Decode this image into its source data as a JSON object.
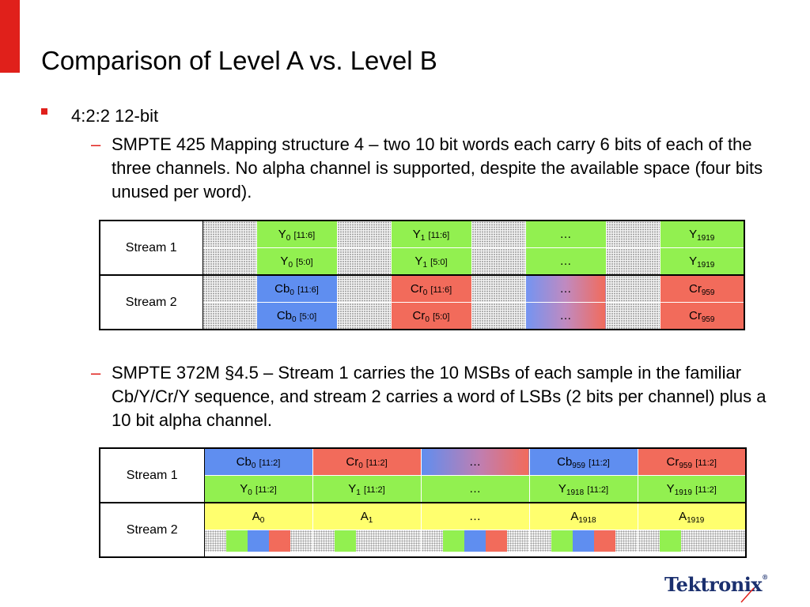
{
  "title": "Comparison of Level A vs. Level B",
  "bullet": "4:2:2 12-bit",
  "sub1": "SMPTE 425 Mapping structure 4 – two 10 bit words each carry 6 bits of each of the three channels.  No alpha channel is supported, despite the available space (four bits unused per word).",
  "sub2": "SMPTE 372M §4.5 – Stream 1 carries the 10 MSBs of each sample in the familiar Cb/Y/Cr/Y sequence, and stream 2 carries a word of LSBs (2 bits per channel) plus a 10 bit alpha channel.",
  "dash": "–",
  "table1": {
    "stream1": "Stream 1",
    "stream2": "Stream 2",
    "r1": [
      {
        "base": "Y",
        "sub": "0",
        "bits": "[11:6]"
      },
      {
        "base": "Y",
        "sub": "1",
        "bits": "[11:6]"
      },
      {
        "base": "…",
        "sub": "",
        "bits": ""
      },
      {
        "base": "Y",
        "sub": "1919",
        "bits": ""
      }
    ],
    "r2": [
      {
        "base": "Y",
        "sub": "0",
        "bits": "[5:0]"
      },
      {
        "base": "Y",
        "sub": "1",
        "bits": "[5:0]"
      },
      {
        "base": "…",
        "sub": "",
        "bits": ""
      },
      {
        "base": "Y",
        "sub": "1919",
        "bits": ""
      }
    ],
    "r3": [
      {
        "base": "Cb",
        "sub": "0",
        "bits": "[11:6]"
      },
      {
        "base": "Cr",
        "sub": "0",
        "bits": "[11:6]"
      },
      {
        "base": "…",
        "sub": "",
        "bits": ""
      },
      {
        "base": "Cr",
        "sub": "959",
        "bits": ""
      }
    ],
    "r4": [
      {
        "base": "Cb",
        "sub": "0",
        "bits": "[5:0]"
      },
      {
        "base": "Cr",
        "sub": "0",
        "bits": "[5:0]"
      },
      {
        "base": "…",
        "sub": "",
        "bits": ""
      },
      {
        "base": "Cr",
        "sub": "959",
        "bits": ""
      }
    ]
  },
  "table2": {
    "stream1": "Stream 1",
    "stream2": "Stream 2",
    "r1": [
      {
        "base": "Cb",
        "sub": "0",
        "bits": "[11:2]"
      },
      {
        "base": "Cr",
        "sub": "0",
        "bits": "[11:2]"
      },
      {
        "base": "…",
        "sub": "",
        "bits": ""
      },
      {
        "base": "Cb",
        "sub": "959",
        "bits": "[11:2]"
      },
      {
        "base": "Cr",
        "sub": "959",
        "bits": "[11:2]"
      }
    ],
    "r2": [
      {
        "base": "Y",
        "sub": "0",
        "bits": "[11:2]"
      },
      {
        "base": "Y",
        "sub": "1",
        "bits": "[11:2]"
      },
      {
        "base": "…",
        "sub": "",
        "bits": ""
      },
      {
        "base": "Y",
        "sub": "1918",
        "bits": "[11:2]"
      },
      {
        "base": "Y",
        "sub": "1919",
        "bits": "[11:2]"
      }
    ],
    "r3": [
      {
        "base": "A",
        "sub": "0",
        "bits": ""
      },
      {
        "base": "A",
        "sub": "1",
        "bits": ""
      },
      {
        "base": "…",
        "sub": "",
        "bits": ""
      },
      {
        "base": "A",
        "sub": "1918",
        "bits": ""
      },
      {
        "base": "A",
        "sub": "1919",
        "bits": ""
      }
    ]
  },
  "logo": "Tektronix",
  "logo_mark": "®",
  "colors": {
    "accent": "#e0201b",
    "y_green": "#92f050",
    "cb_blue": "#5f8ef0",
    "cr_red": "#f26b5b",
    "alpha_yellow": "#ffff6e",
    "logo_navy": "#1a2f6e"
  }
}
